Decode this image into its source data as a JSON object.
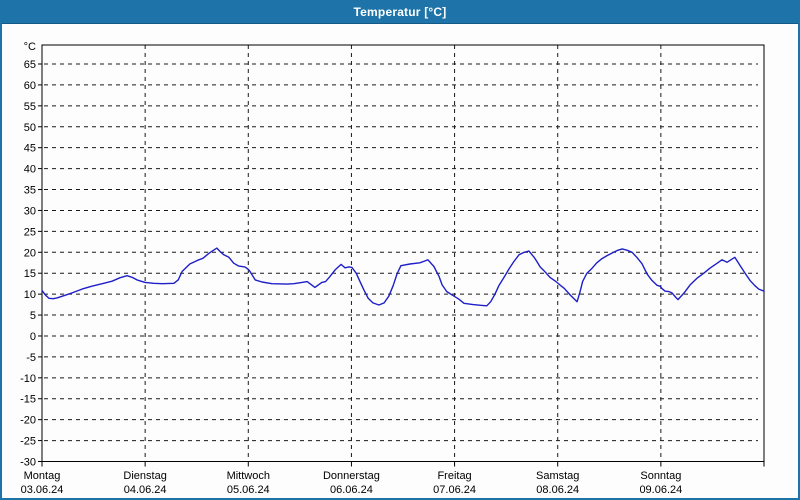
{
  "window": {
    "title": "Temperatur [°C]"
  },
  "colors": {
    "titlebar_bg": "#1e73a8",
    "titlebar_text": "#ffffff",
    "frame": "#1e73a8",
    "curve": "#1f1fc8",
    "grid": "#1a1a1a",
    "axis_text": "#000000",
    "plot_border": "#000000",
    "page_bg": "#fcfdfc"
  },
  "chart_data": {
    "type": "line",
    "title": "Temperatur [°C]",
    "ylabel": "°C",
    "ylim": [
      -30,
      65
    ],
    "y_tick_step": 5,
    "y_ticks": [
      65,
      60,
      55,
      50,
      45,
      40,
      35,
      30,
      25,
      20,
      15,
      10,
      5,
      0,
      -5,
      -10,
      -15,
      -20,
      -25,
      -30
    ],
    "grid": "dashed",
    "legend": "none",
    "x_axis": {
      "unit": "days",
      "hours_total": 168,
      "days": [
        {
          "name": "Montag",
          "date": "03.06.24"
        },
        {
          "name": "Dienstag",
          "date": "04.06.24"
        },
        {
          "name": "Mittwoch",
          "date": "05.06.24"
        },
        {
          "name": "Donnerstag",
          "date": "06.06.24"
        },
        {
          "name": "Freitag",
          "date": "07.06.24"
        },
        {
          "name": "Samstag",
          "date": "08.06.24"
        },
        {
          "name": "Sonntag",
          "date": "09.06.24"
        }
      ]
    },
    "series": [
      {
        "name": "Temperatur",
        "unit": "°C",
        "x_unit": "hours_since_monday_00:00",
        "points": [
          [
            0,
            10.9
          ],
          [
            0.8,
            9.8
          ],
          [
            1.6,
            9.0
          ],
          [
            2.6,
            8.9
          ],
          [
            3.5,
            9.1
          ],
          [
            5,
            9.6
          ],
          [
            7,
            10.3
          ],
          [
            9.3,
            11.2
          ],
          [
            11.6,
            11.9
          ],
          [
            14,
            12.5
          ],
          [
            16.3,
            13.1
          ],
          [
            18.1,
            13.9
          ],
          [
            19.8,
            14.4
          ],
          [
            21,
            14.0
          ],
          [
            22.1,
            13.4
          ],
          [
            24,
            12.8
          ],
          [
            26,
            12.6
          ],
          [
            28,
            12.5
          ],
          [
            30.7,
            12.6
          ],
          [
            31.7,
            13.4
          ],
          [
            32.6,
            15.4
          ],
          [
            34.4,
            17.2
          ],
          [
            36,
            18.0
          ],
          [
            37.5,
            18.6
          ],
          [
            38.9,
            19.8
          ],
          [
            40.7,
            21.0
          ],
          [
            41.5,
            20.1
          ],
          [
            42.3,
            19.4
          ],
          [
            43.5,
            18.8
          ],
          [
            44.6,
            17.4
          ],
          [
            45.8,
            16.7
          ],
          [
            47.2,
            16.5
          ],
          [
            47.9,
            16.0
          ],
          [
            48.4,
            15.4
          ],
          [
            49.6,
            13.4
          ],
          [
            51.2,
            12.9
          ],
          [
            53.5,
            12.5
          ],
          [
            57,
            12.4
          ],
          [
            58.6,
            12.5
          ],
          [
            60.5,
            12.8
          ],
          [
            61.7,
            13.0
          ],
          [
            63.5,
            11.6
          ],
          [
            65.1,
            12.8
          ],
          [
            66,
            13.0
          ],
          [
            67,
            14.2
          ],
          [
            68.2,
            15.8
          ],
          [
            69.6,
            17.1
          ],
          [
            70.5,
            16.3
          ],
          [
            71.4,
            16.5
          ],
          [
            72.1,
            16.4
          ],
          [
            73.1,
            15.0
          ],
          [
            74,
            13.0
          ],
          [
            74.9,
            11.0
          ],
          [
            75.9,
            9.0
          ],
          [
            77,
            7.9
          ],
          [
            78.4,
            7.4
          ],
          [
            79.6,
            7.9
          ],
          [
            80.7,
            9.5
          ],
          [
            81.7,
            12.0
          ],
          [
            82.6,
            14.8
          ],
          [
            83.5,
            16.8
          ],
          [
            85.6,
            17.2
          ],
          [
            87.9,
            17.5
          ],
          [
            89,
            17.9
          ],
          [
            89.8,
            18.2
          ],
          [
            91.2,
            16.6
          ],
          [
            92.4,
            14.2
          ],
          [
            93.1,
            12.2
          ],
          [
            94.2,
            10.6
          ],
          [
            95.9,
            9.5
          ],
          [
            97,
            8.8
          ],
          [
            98.2,
            7.8
          ],
          [
            100.3,
            7.5
          ],
          [
            102.4,
            7.3
          ],
          [
            103.5,
            7.2
          ],
          [
            104.4,
            8.2
          ],
          [
            105.4,
            10.0
          ],
          [
            106.3,
            12.0
          ],
          [
            107.5,
            14.0
          ],
          [
            108.7,
            16.1
          ],
          [
            109.8,
            17.8
          ],
          [
            111,
            19.4
          ],
          [
            112.2,
            20.0
          ],
          [
            113.3,
            20.3
          ],
          [
            114.5,
            18.8
          ],
          [
            115.2,
            17.7
          ],
          [
            115.9,
            16.5
          ],
          [
            116.8,
            15.6
          ],
          [
            118.2,
            14.0
          ],
          [
            119.6,
            13.0
          ],
          [
            120.5,
            12.2
          ],
          [
            121.5,
            11.4
          ],
          [
            122.2,
            10.6
          ],
          [
            122.9,
            9.8
          ],
          [
            123.8,
            8.9
          ],
          [
            124.5,
            8.2
          ],
          [
            125.2,
            10.6
          ],
          [
            125.8,
            13.0
          ],
          [
            126.8,
            15.0
          ],
          [
            128,
            16.2
          ],
          [
            129.1,
            17.5
          ],
          [
            130.3,
            18.5
          ],
          [
            131.5,
            19.2
          ],
          [
            132.6,
            19.8
          ],
          [
            133.8,
            20.4
          ],
          [
            135,
            20.8
          ],
          [
            136.1,
            20.5
          ],
          [
            137.3,
            20.0
          ],
          [
            138.4,
            18.8
          ],
          [
            139.6,
            17.3
          ],
          [
            140.8,
            14.8
          ],
          [
            141.9,
            13.3
          ],
          [
            143.1,
            12.1
          ],
          [
            143.8,
            11.9
          ],
          [
            144.3,
            11.3
          ],
          [
            145,
            10.7
          ],
          [
            145.9,
            10.6
          ],
          [
            146.6,
            10.3
          ],
          [
            147.5,
            9.2
          ],
          [
            148,
            8.7
          ],
          [
            149.4,
            10.3
          ],
          [
            150.8,
            12.2
          ],
          [
            152.4,
            13.8
          ],
          [
            154,
            15.0
          ],
          [
            155.4,
            16.2
          ],
          [
            157.1,
            17.4
          ],
          [
            158.2,
            18.2
          ],
          [
            159.4,
            17.6
          ],
          [
            161.2,
            18.8
          ],
          [
            162.4,
            16.9
          ],
          [
            163.6,
            15.0
          ],
          [
            164.8,
            13.2
          ],
          [
            165.9,
            12.0
          ],
          [
            166.8,
            11.2
          ],
          [
            168,
            10.7
          ]
        ]
      }
    ]
  }
}
